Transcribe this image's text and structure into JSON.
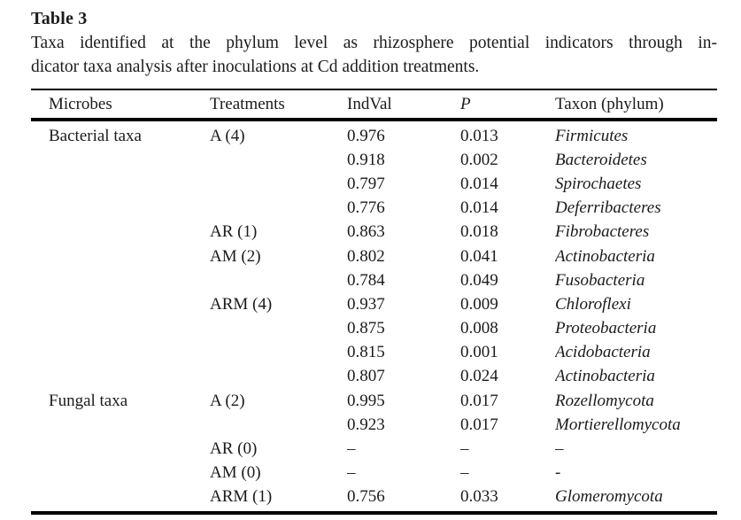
{
  "title": "Table 3",
  "caption": {
    "line1": "Taxa identified at the phylum level as rhizosphere potential indicators through in-",
    "line2": "dicator taxa analysis after inoculations at Cd addition treatments."
  },
  "table": {
    "columns": [
      "Microbes",
      "Treatments",
      "IndVal",
      "P",
      "Taxon (phylum)"
    ],
    "rows": [
      {
        "microbes": "Bacterial taxa",
        "treatment": "A (4)",
        "indval": "0.976",
        "p": "0.013",
        "taxon": "Firmicutes"
      },
      {
        "microbes": "",
        "treatment": "",
        "indval": "0.918",
        "p": "0.002",
        "taxon": "Bacteroidetes"
      },
      {
        "microbes": "",
        "treatment": "",
        "indval": "0.797",
        "p": "0.014",
        "taxon": "Spirochaetes"
      },
      {
        "microbes": "",
        "treatment": "",
        "indval": "0.776",
        "p": "0.014",
        "taxon": "Deferribacteres"
      },
      {
        "microbes": "",
        "treatment": "AR (1)",
        "indval": "0.863",
        "p": "0.018",
        "taxon": "Fibrobacteres"
      },
      {
        "microbes": "",
        "treatment": "AM (2)",
        "indval": "0.802",
        "p": "0.041",
        "taxon": "Actinobacteria"
      },
      {
        "microbes": "",
        "treatment": "",
        "indval": "0.784",
        "p": "0.049",
        "taxon": "Fusobacteria"
      },
      {
        "microbes": "",
        "treatment": "ARM (4)",
        "indval": "0.937",
        "p": "0.009",
        "taxon": "Chloroflexi"
      },
      {
        "microbes": "",
        "treatment": "",
        "indval": "0.875",
        "p": "0.008",
        "taxon": "Proteobacteria"
      },
      {
        "microbes": "",
        "treatment": "",
        "indval": "0.815",
        "p": "0.001",
        "taxon": "Acidobacteria"
      },
      {
        "microbes": "",
        "treatment": "",
        "indval": "0.807",
        "p": "0.024",
        "taxon": "Actinobacteria"
      },
      {
        "microbes": "Fungal taxa",
        "treatment": "A (2)",
        "indval": "0.995",
        "p": "0.017",
        "taxon": "Rozellomycota"
      },
      {
        "microbes": "",
        "treatment": "",
        "indval": "0.923",
        "p": "0.017",
        "taxon": "Mortierellomycota"
      },
      {
        "microbes": "",
        "treatment": "AR (0)",
        "indval": "–",
        "p": "–",
        "taxon": "–"
      },
      {
        "microbes": "",
        "treatment": "AM (0)",
        "indval": "–",
        "p": "–",
        "taxon": "-"
      },
      {
        "microbes": "",
        "treatment": "ARM (1)",
        "indval": "0.756",
        "p": "0.033",
        "taxon": "Glomeromycota"
      }
    ]
  },
  "colors": {
    "text": "#1b1b1b",
    "rule": "#000000",
    "background": "#ffffff"
  }
}
